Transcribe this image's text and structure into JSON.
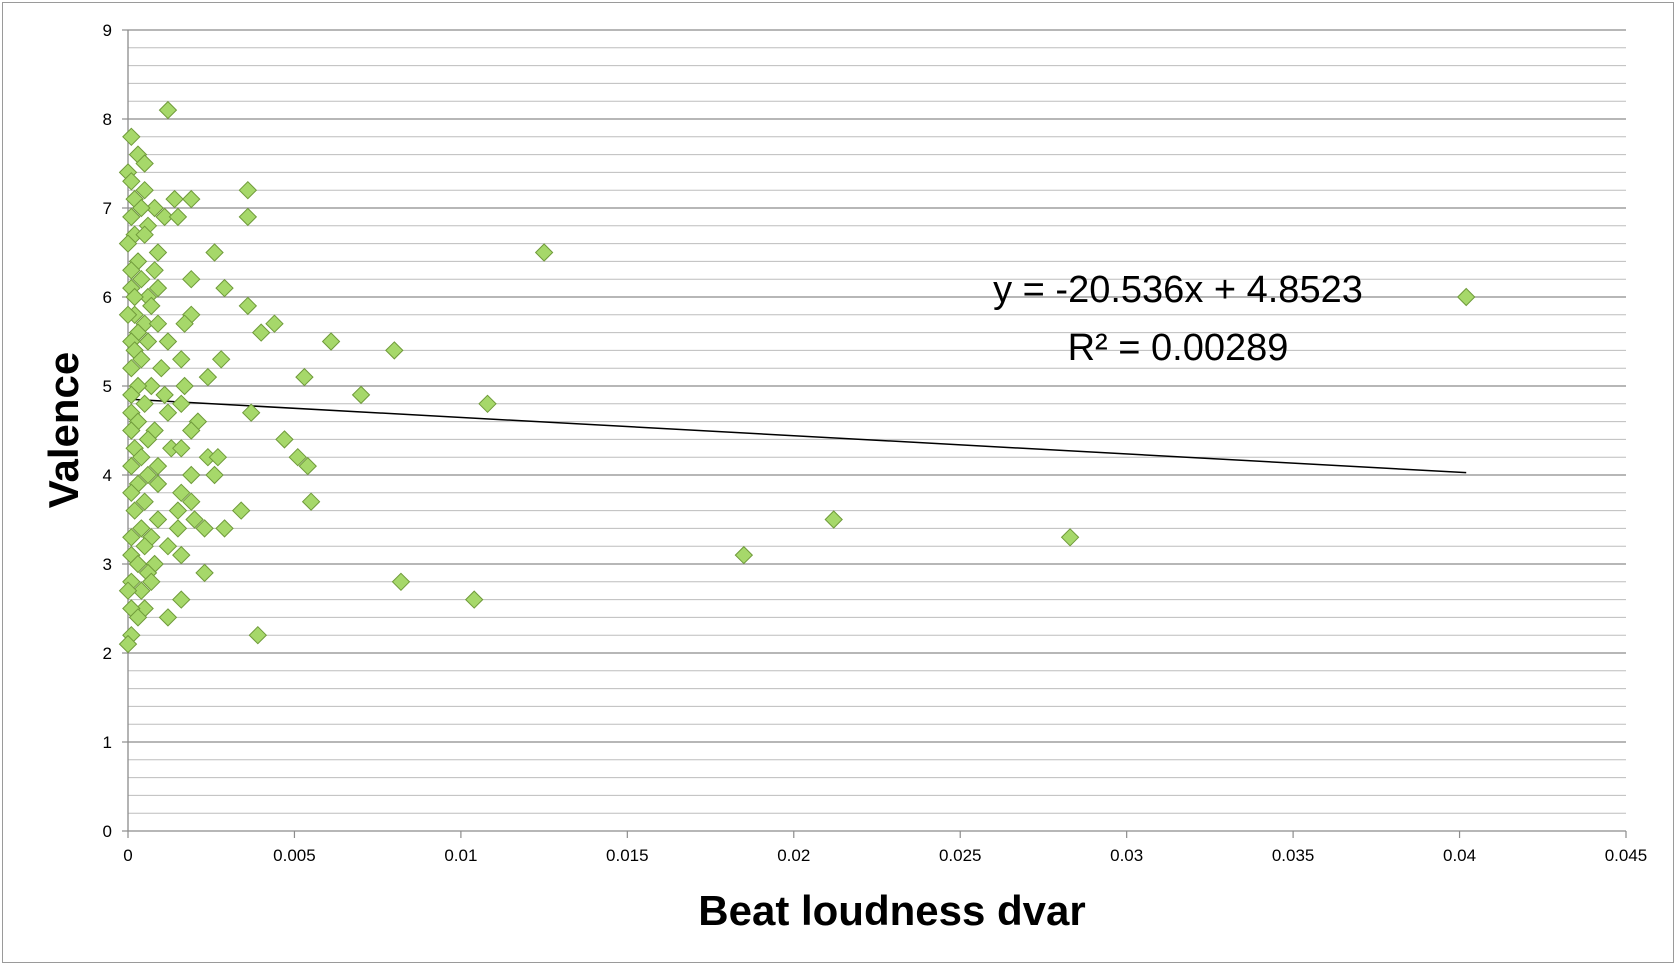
{
  "chart_data": {
    "type": "scatter",
    "title": "",
    "xlabel": "Beat loudness dvar",
    "ylabel": "Valence",
    "xlim": [
      0,
      0.045
    ],
    "ylim": [
      0,
      9
    ],
    "x_ticks": [
      "0",
      "0.005",
      "0.01",
      "0.015",
      "0.02",
      "0.025",
      "0.03",
      "0.035",
      "0.04",
      "0.045"
    ],
    "y_ticks": [
      "0",
      "1",
      "2",
      "3",
      "4",
      "5",
      "6",
      "7",
      "8",
      "9"
    ],
    "grid": "horizontal, minor step 0.2",
    "legend": "none",
    "marker": "diamond",
    "colors": {
      "marker_fill": "#a6d86a",
      "marker_stroke": "#6f9a3a",
      "trendline": "#000000",
      "major_grid": "#8c8c8c",
      "minor_grid": "#bdbdbd"
    },
    "trendline": {
      "type": "linear",
      "slope": -20.536,
      "intercept": 4.8523,
      "equation": "y = -20.536x + 4.8523",
      "r_squared": "R² = 0.00289"
    },
    "points": [
      [
        0.0012,
        8.1
      ],
      [
        0.0001,
        7.8
      ],
      [
        0.0003,
        7.6
      ],
      [
        0.0005,
        7.5
      ],
      [
        0.0,
        7.4
      ],
      [
        0.0001,
        7.3
      ],
      [
        0.0005,
        7.2
      ],
      [
        0.0036,
        7.2
      ],
      [
        0.0014,
        7.1
      ],
      [
        0.0019,
        7.1
      ],
      [
        0.0002,
        7.1
      ],
      [
        0.0008,
        7.0
      ],
      [
        0.0004,
        7.0
      ],
      [
        0.0011,
        6.9
      ],
      [
        0.0015,
        6.9
      ],
      [
        0.0036,
        6.9
      ],
      [
        0.0001,
        6.9
      ],
      [
        0.0006,
        6.8
      ],
      [
        0.0002,
        6.7
      ],
      [
        0.0005,
        6.7
      ],
      [
        0.0,
        6.6
      ],
      [
        0.0009,
        6.5
      ],
      [
        0.0026,
        6.5
      ],
      [
        0.0125,
        6.5
      ],
      [
        0.0003,
        6.4
      ],
      [
        0.0001,
        6.3
      ],
      [
        0.0008,
        6.3
      ],
      [
        0.0004,
        6.2
      ],
      [
        0.0019,
        6.2
      ],
      [
        0.0001,
        6.1
      ],
      [
        0.0009,
        6.1
      ],
      [
        0.0029,
        6.1
      ],
      [
        0.0006,
        6.0
      ],
      [
        0.0002,
        6.0
      ],
      [
        0.0402,
        6.0
      ],
      [
        0.0036,
        5.9
      ],
      [
        0.0007,
        5.9
      ],
      [
        0.0002,
        5.8
      ],
      [
        0.0019,
        5.8
      ],
      [
        0.0,
        5.8
      ],
      [
        0.0005,
        5.7
      ],
      [
        0.0017,
        5.7
      ],
      [
        0.0044,
        5.7
      ],
      [
        0.0009,
        5.7
      ],
      [
        0.0003,
        5.6
      ],
      [
        0.004,
        5.6
      ],
      [
        0.0001,
        5.5
      ],
      [
        0.0012,
        5.5
      ],
      [
        0.0061,
        5.5
      ],
      [
        0.0006,
        5.5
      ],
      [
        0.008,
        5.4
      ],
      [
        0.0002,
        5.4
      ],
      [
        0.0016,
        5.3
      ],
      [
        0.0028,
        5.3
      ],
      [
        0.0004,
        5.3
      ],
      [
        0.001,
        5.2
      ],
      [
        0.0001,
        5.2
      ],
      [
        0.0053,
        5.1
      ],
      [
        0.0024,
        5.1
      ],
      [
        0.0007,
        5.0
      ],
      [
        0.0017,
        5.0
      ],
      [
        0.0003,
        5.0
      ],
      [
        0.007,
        4.9
      ],
      [
        0.0001,
        4.9
      ],
      [
        0.0011,
        4.9
      ],
      [
        0.0016,
        4.8
      ],
      [
        0.0108,
        4.8
      ],
      [
        0.0005,
        4.8
      ],
      [
        0.0001,
        4.7
      ],
      [
        0.0012,
        4.7
      ],
      [
        0.0037,
        4.7
      ],
      [
        0.0003,
        4.6
      ],
      [
        0.0021,
        4.6
      ],
      [
        0.0008,
        4.5
      ],
      [
        0.0019,
        4.5
      ],
      [
        0.0001,
        4.5
      ],
      [
        0.0006,
        4.4
      ],
      [
        0.0047,
        4.4
      ],
      [
        0.0002,
        4.3
      ],
      [
        0.0013,
        4.3
      ],
      [
        0.0016,
        4.3
      ],
      [
        0.0024,
        4.2
      ],
      [
        0.0051,
        4.2
      ],
      [
        0.0027,
        4.2
      ],
      [
        0.0004,
        4.2
      ],
      [
        0.0009,
        4.1
      ],
      [
        0.0054,
        4.1
      ],
      [
        0.0001,
        4.1
      ],
      [
        0.0019,
        4.0
      ],
      [
        0.0026,
        4.0
      ],
      [
        0.0006,
        4.0
      ],
      [
        0.0003,
        3.9
      ],
      [
        0.0009,
        3.9
      ],
      [
        0.0016,
        3.8
      ],
      [
        0.0001,
        3.8
      ],
      [
        0.0019,
        3.7
      ],
      [
        0.0055,
        3.7
      ],
      [
        0.0005,
        3.7
      ],
      [
        0.0015,
        3.6
      ],
      [
        0.0034,
        3.6
      ],
      [
        0.0002,
        3.6
      ],
      [
        0.0009,
        3.5
      ],
      [
        0.002,
        3.5
      ],
      [
        0.0212,
        3.5
      ],
      [
        0.0004,
        3.4
      ],
      [
        0.0023,
        3.4
      ],
      [
        0.0029,
        3.4
      ],
      [
        0.0015,
        3.4
      ],
      [
        0.0007,
        3.3
      ],
      [
        0.0283,
        3.3
      ],
      [
        0.0001,
        3.3
      ],
      [
        0.0012,
        3.2
      ],
      [
        0.0005,
        3.2
      ],
      [
        0.0016,
        3.1
      ],
      [
        0.0185,
        3.1
      ],
      [
        0.0001,
        3.1
      ],
      [
        0.0008,
        3.0
      ],
      [
        0.0003,
        3.0
      ],
      [
        0.0023,
        2.9
      ],
      [
        0.0006,
        2.9
      ],
      [
        0.0082,
        2.8
      ],
      [
        0.0001,
        2.8
      ],
      [
        0.0007,
        2.8
      ],
      [
        0.0004,
        2.7
      ],
      [
        0.0,
        2.7
      ],
      [
        0.0016,
        2.6
      ],
      [
        0.0104,
        2.6
      ],
      [
        0.0005,
        2.5
      ],
      [
        0.0001,
        2.5
      ],
      [
        0.0012,
        2.4
      ],
      [
        0.0003,
        2.4
      ],
      [
        0.0039,
        2.2
      ],
      [
        0.0001,
        2.2
      ],
      [
        0.0,
        2.1
      ]
    ]
  }
}
